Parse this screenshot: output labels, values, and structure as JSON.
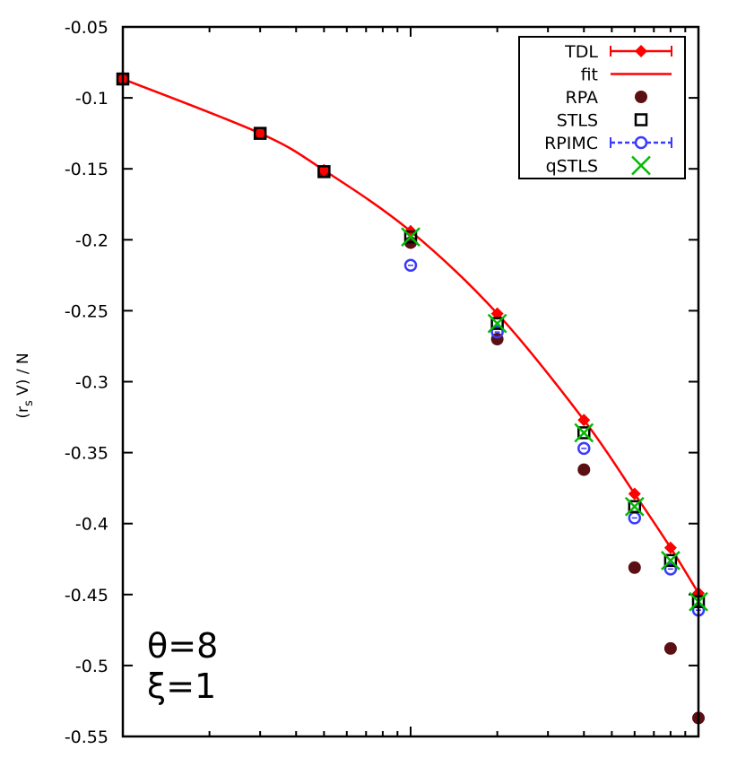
{
  "chart_data": {
    "type": "scatter",
    "title": "",
    "xlabel": "",
    "ylabel": "(r_s V) / N",
    "ylabel_parts": {
      "open": "(r",
      "sub": "s",
      "close": " V) / N"
    },
    "xscale": "log",
    "xlim": [
      1,
      100
    ],
    "ylim": [
      -0.55,
      -0.05
    ],
    "yticks": [
      -0.05,
      -0.1,
      -0.15,
      -0.2,
      -0.25,
      -0.3,
      -0.35,
      -0.4,
      -0.45,
      -0.5,
      -0.55
    ],
    "ytick_labels": [
      "-0.05",
      "-0.1",
      "-0.15",
      "-0.2",
      "-0.25",
      "-0.3",
      "-0.35",
      "-0.4",
      "-0.45",
      "-0.5",
      "-0.55"
    ],
    "x": [
      1,
      3,
      5,
      10,
      20,
      40,
      60,
      80,
      100
    ],
    "legend_position": "top-right",
    "series": [
      {
        "name": "TDL",
        "marker": "diamond-errorbar",
        "color": "#ff0000",
        "values": [
          -0.0867,
          -0.125,
          -0.151,
          -0.194,
          -0.252,
          -0.327,
          -0.379,
          -0.417,
          -0.449
        ]
      },
      {
        "name": "fit",
        "marker": "line",
        "color": "#ff0000",
        "values": [
          -0.0867,
          -0.125,
          -0.151,
          -0.194,
          -0.252,
          -0.327,
          -0.379,
          -0.417,
          -0.449
        ]
      },
      {
        "name": "RPA",
        "marker": "filled-circle",
        "color": "#5c0f12",
        "values": [
          -0.0867,
          -0.125,
          -0.152,
          -0.202,
          -0.27,
          -0.362,
          -0.431,
          -0.488,
          -0.537
        ]
      },
      {
        "name": "STLS",
        "marker": "open-square",
        "color": "#000000",
        "values": [
          -0.0867,
          -0.125,
          -0.152,
          -0.198,
          -0.259,
          -0.336,
          -0.388,
          -0.426,
          -0.455
        ]
      },
      {
        "name": "RPIMC",
        "marker": "open-circle-errorbar",
        "color": "#3a3aff",
        "values": [
          null,
          null,
          null,
          -0.218,
          -0.265,
          -0.347,
          -0.396,
          -0.432,
          -0.461
        ]
      },
      {
        "name": "qSTLS",
        "marker": "cross",
        "color": "#00bb00",
        "values": [
          null,
          null,
          null,
          -0.198,
          -0.259,
          -0.336,
          -0.388,
          -0.426,
          -0.455
        ]
      }
    ],
    "annotations": [
      "θ=8",
      "ξ=1"
    ]
  }
}
